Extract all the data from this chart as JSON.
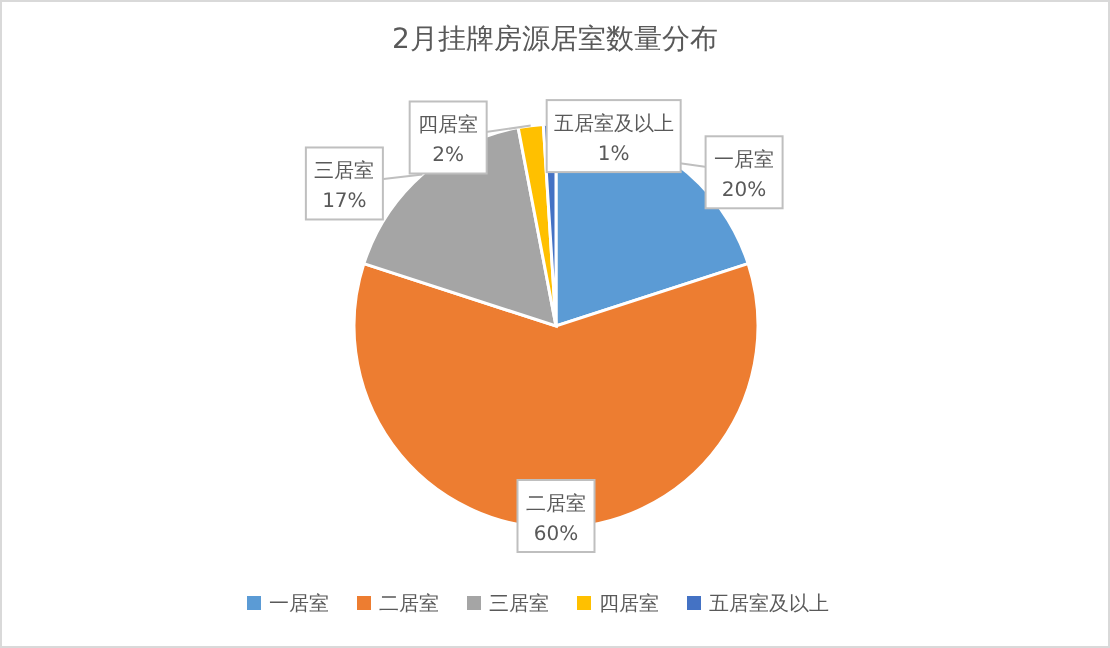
{
  "chart_data": {
    "type": "pie",
    "title": "2月挂牌房源居室数量分布",
    "categories": [
      "一居室",
      "二居室",
      "三居室",
      "四居室",
      "五居室及以上"
    ],
    "values": [
      20,
      60,
      17,
      2,
      1
    ],
    "value_labels": [
      "20%",
      "60%",
      "17%",
      "2%",
      "1%"
    ],
    "colors": [
      "#5b9bd5",
      "#ed7d31",
      "#a5a5a5",
      "#ffc000",
      "#4472c4"
    ],
    "legend": "bottom"
  }
}
